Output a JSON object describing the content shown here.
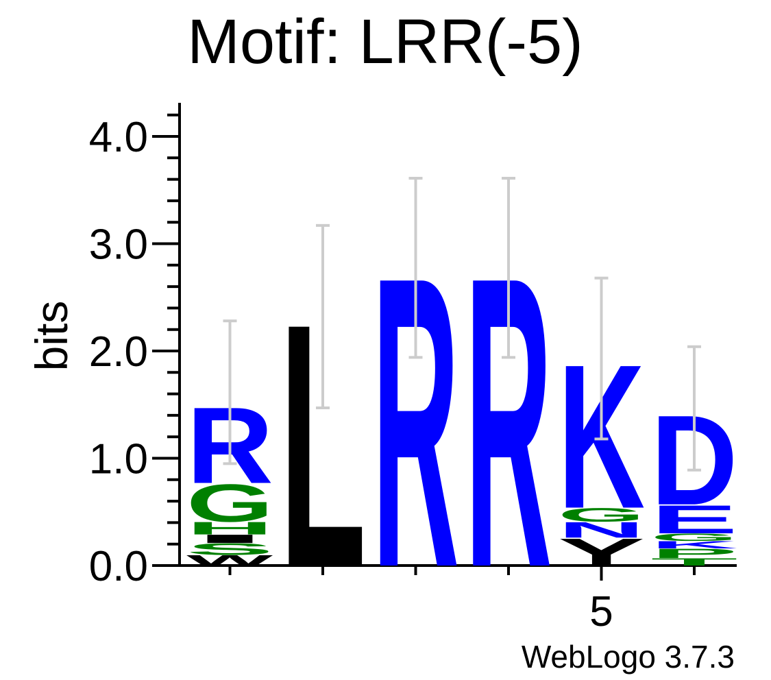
{
  "chart_data": {
    "type": "sequence-logo",
    "title": "Motif: LRR(-5)",
    "ylabel": "bits",
    "xlabel": "",
    "ylim": [
      0,
      4.3
    ],
    "yticks": [
      {
        "value": 0,
        "label": "0.0"
      },
      {
        "value": 1,
        "label": "1.0"
      },
      {
        "value": 2,
        "label": "2.0"
      },
      {
        "value": 3,
        "label": "3.0"
      },
      {
        "value": 4,
        "label": "4.0"
      }
    ],
    "xtick_labels": [
      {
        "position": 5,
        "label": "5"
      }
    ],
    "credit": "WebLogo 3.7.3",
    "colors": {
      "hydrophobic": "#000000",
      "basic": "#0000ff",
      "acidic": "#0000ff",
      "polar": "#008000",
      "error_bar": "#cccccc"
    },
    "positions": [
      {
        "position": 1,
        "letters": [
          {
            "letter": "W",
            "bits": 0.1,
            "color": "#000000"
          },
          {
            "letter": "S",
            "bits": 0.11,
            "color": "#008000"
          },
          {
            "letter": "I",
            "bits": 0.08,
            "color": "#000000"
          },
          {
            "letter": "H",
            "bits": 0.12,
            "color": "#008000"
          },
          {
            "letter": "G",
            "bits": 0.36,
            "color": "#008000"
          },
          {
            "letter": "R",
            "bits": 0.73,
            "color": "#0000ff"
          }
        ],
        "error": [
          0.95,
          2.28
        ]
      },
      {
        "position": 2,
        "letters": [
          {
            "letter": "L",
            "bits": 2.33,
            "color": "#000000"
          }
        ],
        "error": [
          1.47,
          3.17
        ]
      },
      {
        "position": 3,
        "letters": [
          {
            "letter": "R",
            "bits": 2.78,
            "color": "#0000ff"
          }
        ],
        "error": [
          1.94,
          3.61
        ]
      },
      {
        "position": 4,
        "letters": [
          {
            "letter": "R",
            "bits": 2.78,
            "color": "#0000ff"
          }
        ],
        "error": [
          1.94,
          3.61
        ]
      },
      {
        "position": 5,
        "letters": [
          {
            "letter": "Y",
            "bits": 0.26,
            "color": "#000000"
          },
          {
            "letter": "N",
            "bits": 0.15,
            "color": "#0000ff"
          },
          {
            "letter": "G",
            "bits": 0.13,
            "color": "#008000"
          },
          {
            "letter": "K",
            "bits": 1.38,
            "color": "#0000ff"
          }
        ],
        "error": [
          1.18,
          2.68
        ]
      },
      {
        "position": 6,
        "letters": [
          {
            "letter": "T",
            "bits": 0.07,
            "color": "#008000"
          },
          {
            "letter": "P",
            "bits": 0.09,
            "color": "#008000"
          },
          {
            "letter": "K",
            "bits": 0.07,
            "color": "#0000ff"
          },
          {
            "letter": "G",
            "bits": 0.07,
            "color": "#008000"
          },
          {
            "letter": "E",
            "bits": 0.27,
            "color": "#0000ff"
          },
          {
            "letter": "D",
            "bits": 0.86,
            "color": "#0000ff"
          }
        ],
        "error": [
          0.89,
          2.04
        ]
      }
    ]
  }
}
